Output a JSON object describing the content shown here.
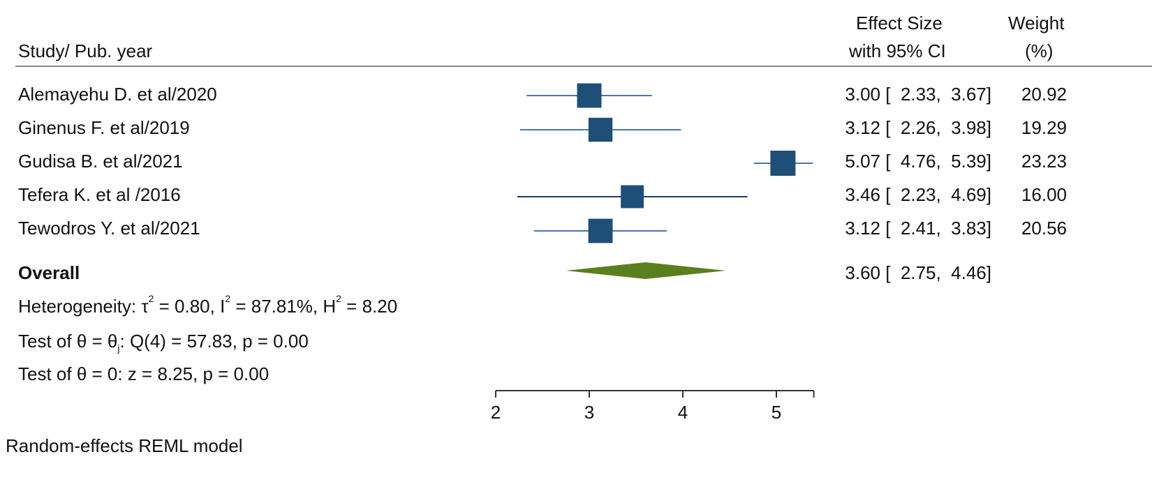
{
  "headers": {
    "study": "Study/ Pub. year",
    "effect_line1": "Effect Size",
    "effect_line2": "with 95% CI",
    "weight_line1": "Weight",
    "weight_line2": "(%)"
  },
  "stats": {
    "heterogeneity_prefix": "Heterogeneity: τ",
    "heterogeneity_tau_exp": "2",
    "heterogeneity_mid1": " = 0.80, I",
    "heterogeneity_i_exp": "2",
    "heterogeneity_mid2": " = 87.81%, H",
    "heterogeneity_h_exp": "2",
    "heterogeneity_end": " = 8.20",
    "test_theta_i_prefix": "Test of θ = θ",
    "test_theta_i_sub": "j",
    "test_theta_i_end": ": Q(4) = 57.83, p = 0.00",
    "test_theta_zero": "Test of θ = 0: z = 8.25, p = 0.00"
  },
  "model_note": "Random-effects REML model",
  "colors": {
    "marker": "#1f4e79",
    "ci_line_light": "#4a76a8",
    "ci_line_dark": "#1f3f66",
    "diamond": "#5b7f1f",
    "axis": "#333333"
  },
  "chart_data": {
    "type": "forest",
    "xlim": [
      2,
      5.4
    ],
    "xticks": [
      2,
      3,
      4,
      5
    ],
    "studies": [
      {
        "label": "Alemayehu D. et al/2020",
        "es": 3.0,
        "lo": 2.33,
        "hi": 3.67,
        "ci_text": "3.00 [  2.33,  3.67]",
        "weight": "20.92",
        "weight_value": 20.92
      },
      {
        "label": "Ginenus F. et al/2019",
        "es": 3.12,
        "lo": 2.26,
        "hi": 3.98,
        "ci_text": "3.12 [  2.26,  3.98]",
        "weight": "19.29",
        "weight_value": 19.29
      },
      {
        "label": "Gudisa B. et al/2021",
        "es": 5.07,
        "lo": 4.76,
        "hi": 5.39,
        "ci_text": "5.07 [  4.76,  5.39]",
        "weight": "23.23",
        "weight_value": 23.23
      },
      {
        "label": "Tefera K. et al /2016",
        "es": 3.46,
        "lo": 2.23,
        "hi": 4.69,
        "ci_text": "3.46 [  2.23,  4.69]",
        "weight": "16.00",
        "weight_value": 16.0
      },
      {
        "label": "Tewodros Y. et al/2021",
        "es": 3.12,
        "lo": 2.41,
        "hi": 3.83,
        "ci_text": "3.12 [  2.41,  3.83]",
        "weight": "20.56",
        "weight_value": 20.56
      }
    ],
    "overall": {
      "label": "Overall",
      "es": 3.6,
      "lo": 2.75,
      "hi": 4.46,
      "ci_text": "3.60 [  2.75,  4.46]"
    }
  }
}
